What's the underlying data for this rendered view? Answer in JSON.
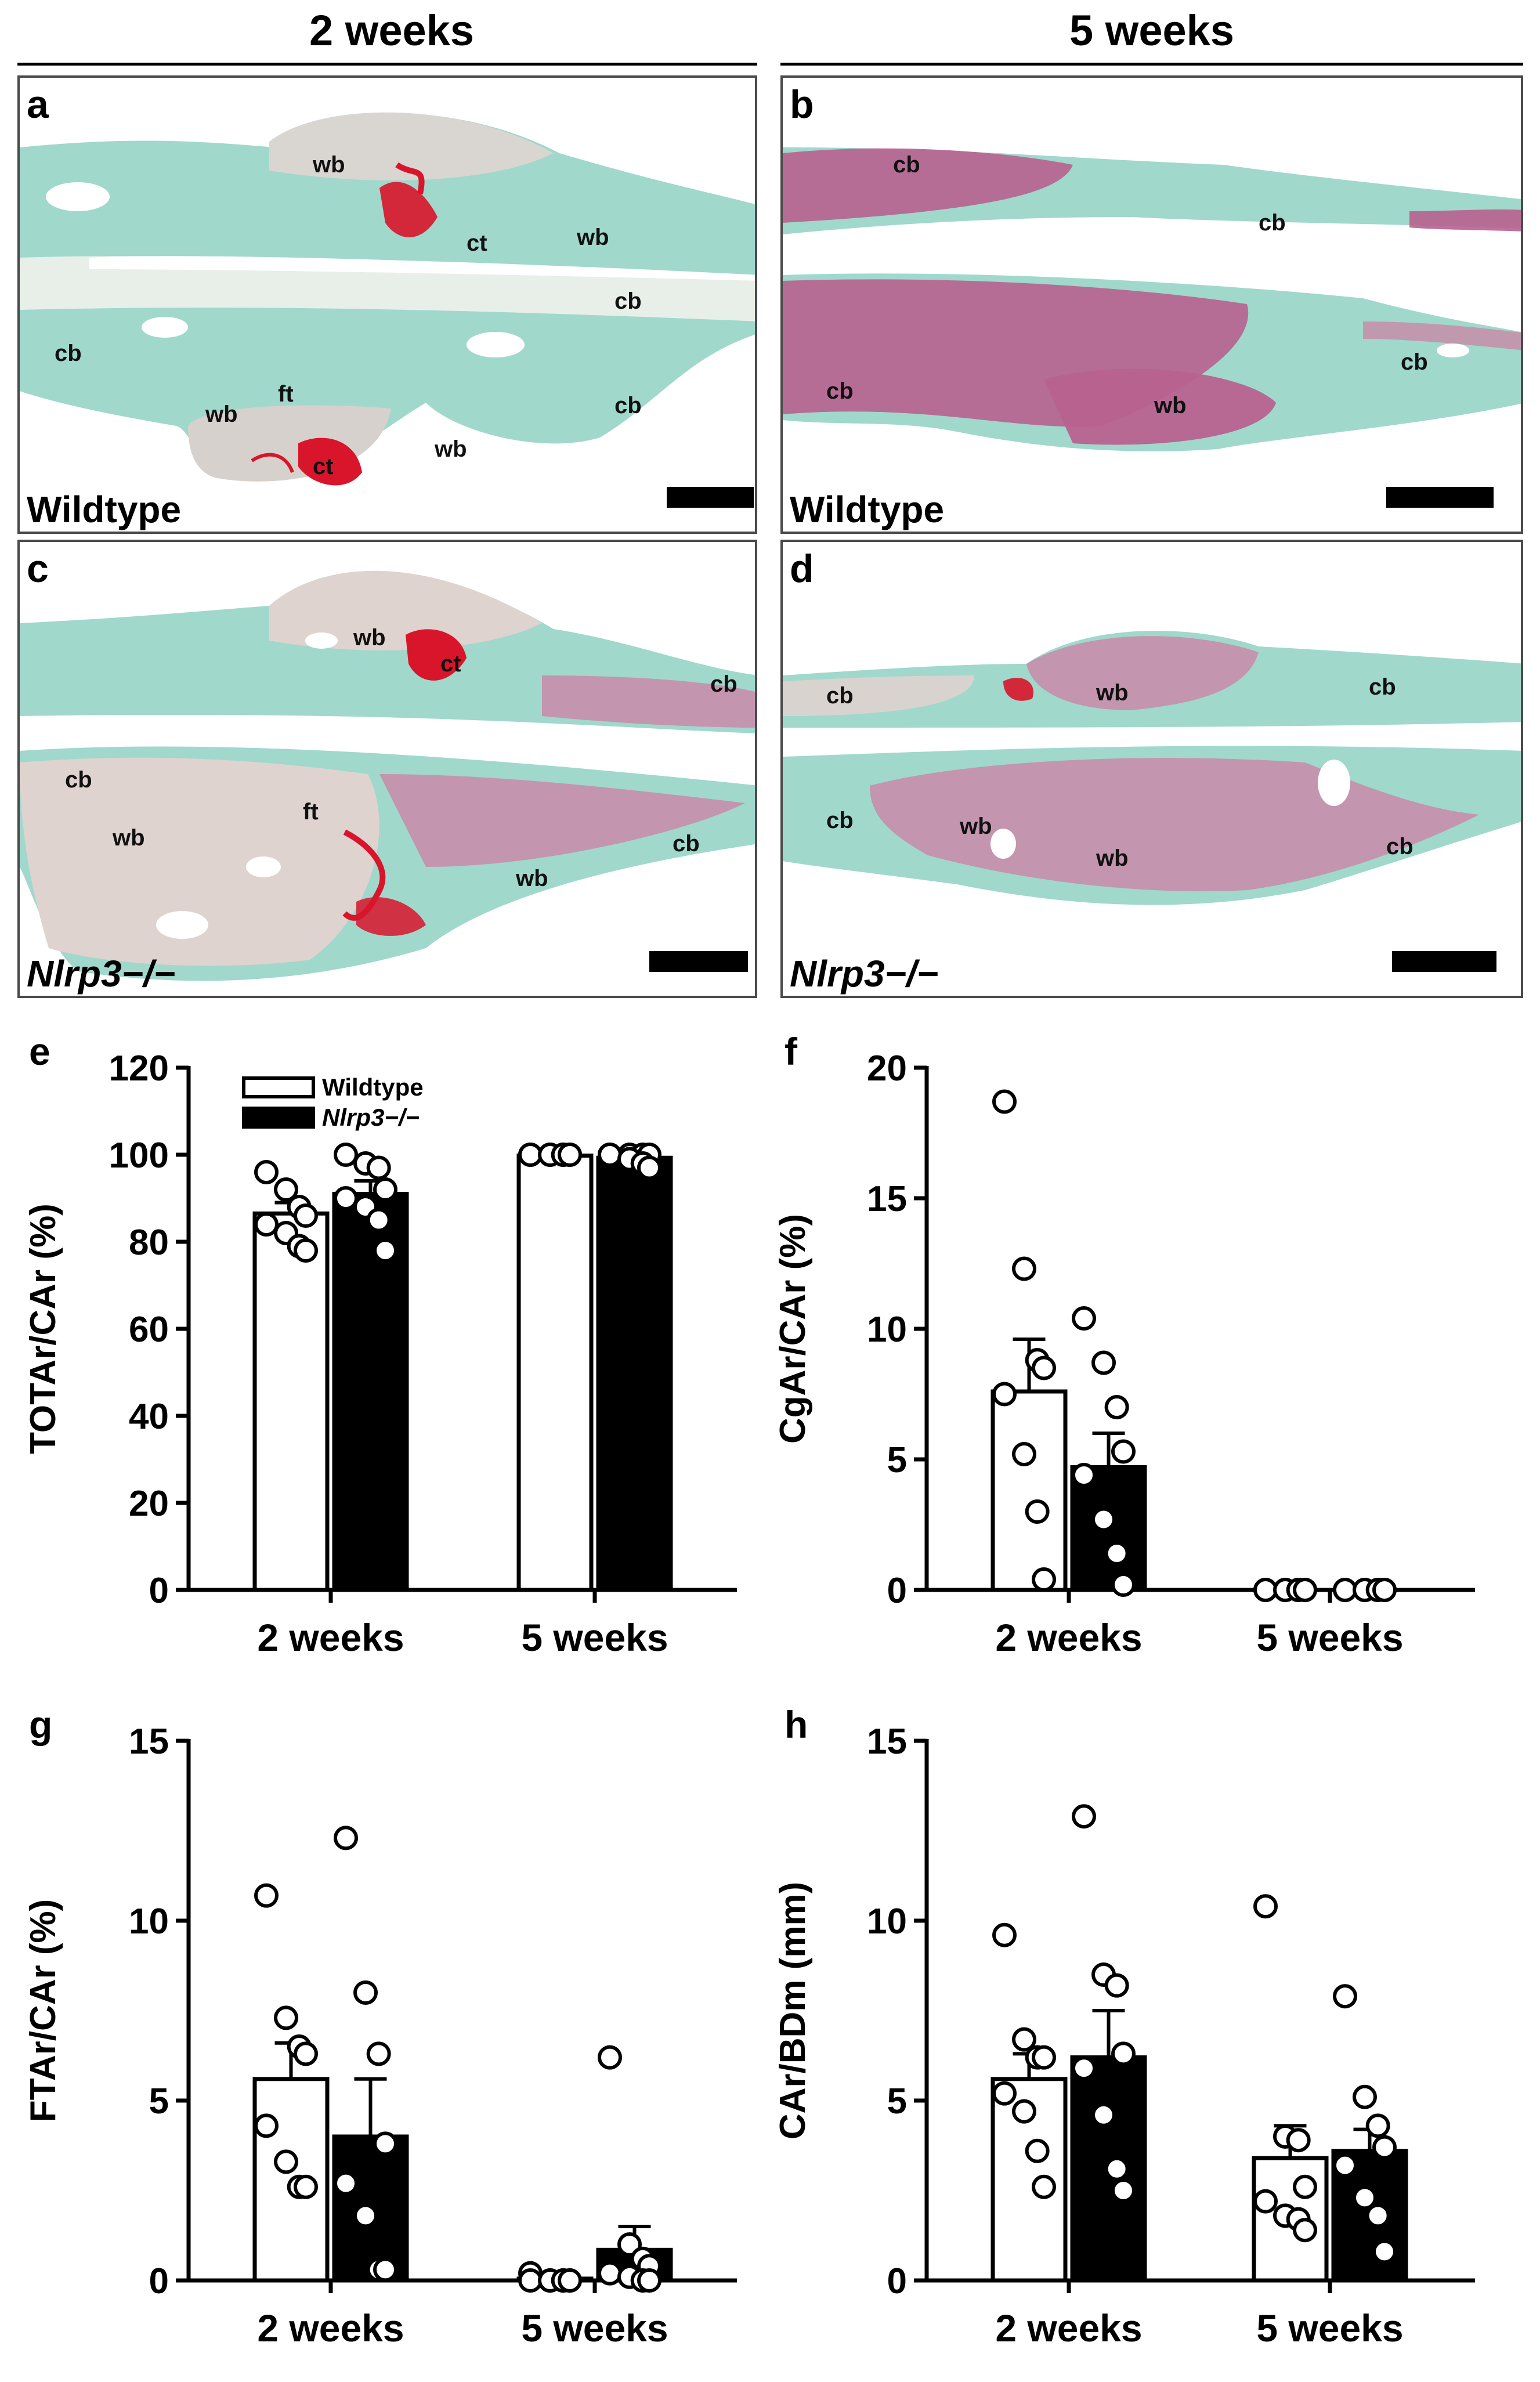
{
  "headers": {
    "left": "2 weeks",
    "right": "5 weeks"
  },
  "micrographs": [
    {
      "id": "a",
      "genotype": "Wildtype",
      "italic": false,
      "labels": [
        "wb",
        "ct",
        "wb",
        "cb",
        "cb",
        "wb",
        "ft",
        "wb",
        "cb",
        "ct"
      ]
    },
    {
      "id": "b",
      "genotype": "Wildtype",
      "italic": false,
      "labels": [
        "cb",
        "cb",
        "cb",
        "cb",
        "wb"
      ]
    },
    {
      "id": "c",
      "genotype": "Nlrp3−/−",
      "italic": true,
      "labels": [
        "wb",
        "ct",
        "cb",
        "cb",
        "ft",
        "wb",
        "wb",
        "cb"
      ]
    },
    {
      "id": "d",
      "genotype": "Nlrp3−/−",
      "italic": true,
      "labels": [
        "cb",
        "wb",
        "cb",
        "cb",
        "wb",
        "wb",
        "cb"
      ]
    }
  ],
  "colors": {
    "stain_green": "#8fd1c3",
    "stain_red": "#d8152a",
    "stain_purple": "#b8628f",
    "bar_wildtype": "#ffffff",
    "bar_nlrp3": "#000000"
  },
  "chart_data": [
    {
      "panel": "e",
      "type": "bar",
      "ylabel": "TOTAr/CAr (%)",
      "ylim": [
        0,
        120
      ],
      "yticks": [
        0,
        20,
        40,
        60,
        80,
        100,
        120
      ],
      "categories": [
        "2 weeks",
        "5 weeks"
      ],
      "legend": [
        "Wildtype",
        "Nlrp3−/−"
      ],
      "legend_position": "top-left",
      "series": [
        {
          "name": "Wildtype",
          "values": [
            86.5,
            99.8
          ],
          "sem": [
            2.5,
            0.2
          ],
          "points": [
            [
              96,
              92,
              88,
              86,
              84,
              82,
              79,
              78
            ],
            [
              100,
              100,
              100,
              100,
              100,
              100,
              100,
              100
            ]
          ]
        },
        {
          "name": "Nlrp3−/−",
          "values": [
            91.0,
            99.3
          ],
          "sem": [
            3.0,
            0.5
          ],
          "points": [
            [
              100,
              98,
              97,
              92,
              90,
              88,
              85,
              78
            ],
            [
              100,
              100,
              100,
              100,
              100,
              99,
              98,
              97
            ]
          ]
        }
      ]
    },
    {
      "panel": "f",
      "type": "bar",
      "ylabel": "CgAr/CAr (%)",
      "ylim": [
        0,
        20
      ],
      "yticks": [
        0,
        5,
        10,
        15,
        20
      ],
      "categories": [
        "2 weeks",
        "5 weeks"
      ],
      "series": [
        {
          "name": "Wildtype",
          "values": [
            7.6,
            0.0
          ],
          "sem": [
            2.0,
            0.0
          ],
          "points": [
            [
              18.7,
              12.3,
              8.8,
              8.5,
              7.5,
              5.2,
              3.0,
              0.4
            ],
            [
              0,
              0,
              0,
              0,
              0,
              0,
              0,
              0
            ]
          ]
        },
        {
          "name": "Nlrp3−/−",
          "values": [
            4.7,
            0.0
          ],
          "sem": [
            1.3,
            0.0
          ],
          "points": [
            [
              10.4,
              8.7,
              7.0,
              5.3,
              4.4,
              2.7,
              1.4,
              0.2
            ],
            [
              0,
              0,
              0,
              0,
              0,
              0,
              0,
              0
            ]
          ]
        }
      ]
    },
    {
      "panel": "g",
      "type": "bar",
      "ylabel": "FTAr/CAr (%)",
      "ylim": [
        0,
        15
      ],
      "yticks": [
        0,
        5,
        10,
        15
      ],
      "categories": [
        "2 weeks",
        "5 weeks"
      ],
      "series": [
        {
          "name": "Wildtype",
          "values": [
            5.6,
            0.05
          ],
          "sem": [
            1.0,
            0.05
          ],
          "points": [
            [
              10.7,
              7.3,
              6.5,
              6.3,
              4.3,
              3.3,
              2.6,
              2.6
            ],
            [
              0.2,
              0,
              0,
              0,
              0,
              0,
              0,
              0
            ]
          ]
        },
        {
          "name": "Nlrp3−/−",
          "values": [
            4.0,
            0.85
          ],
          "sem": [
            1.6,
            0.65
          ],
          "points": [
            [
              12.3,
              8.0,
              6.3,
              3.8,
              2.7,
              1.8,
              0.3,
              0.3
            ],
            [
              6.2,
              1.0,
              0.6,
              0.4,
              0.2,
              0.1,
              0,
              0
            ]
          ]
        }
      ]
    },
    {
      "panel": "h",
      "type": "bar",
      "ylabel": "CAr/BDm (mm)",
      "ylim": [
        0,
        15
      ],
      "yticks": [
        0,
        5,
        10,
        15
      ],
      "categories": [
        "2 weeks",
        "5 weeks"
      ],
      "series": [
        {
          "name": "Wildtype",
          "values": [
            5.6,
            3.4
          ],
          "sem": [
            0.7,
            0.9
          ],
          "points": [
            [
              9.6,
              6.7,
              6.2,
              6.2,
              5.2,
              4.7,
              3.6,
              2.6
            ],
            [
              10.4,
              4.0,
              3.9,
              2.6,
              2.2,
              1.8,
              1.7,
              1.4
            ]
          ]
        },
        {
          "name": "Nlrp3−/−",
          "values": [
            6.2,
            3.6
          ],
          "sem": [
            1.3,
            0.6
          ],
          "points": [
            [
              12.9,
              8.5,
              8.2,
              6.3,
              5.9,
              4.6,
              3.1,
              2.5
            ],
            [
              7.9,
              5.1,
              4.3,
              3.7,
              3.2,
              2.3,
              1.8,
              0.8
            ]
          ]
        }
      ]
    }
  ]
}
